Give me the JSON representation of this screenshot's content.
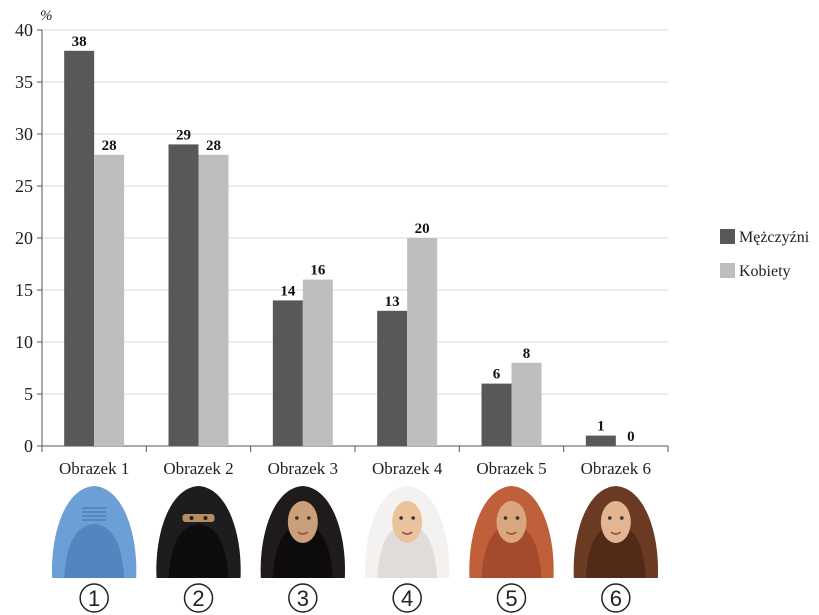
{
  "chart_data": {
    "type": "bar",
    "unit_label": "%",
    "categories": [
      "Obrazek 1",
      "Obrazek 2",
      "Obrazek 3",
      "Obrazek 4",
      "Obrazek 5",
      "Obrazek 6"
    ],
    "series": [
      {
        "name": "Mężczyźni",
        "color": "#58585a",
        "values": [
          38,
          29,
          14,
          13,
          6,
          1
        ]
      },
      {
        "name": "Kobiety",
        "color": "#bdbec0",
        "values": [
          28,
          28,
          16,
          20,
          8,
          0
        ]
      }
    ],
    "y_ticks": [
      "0",
      "5",
      "10",
      "15",
      "20",
      "25",
      "30",
      "35",
      "40"
    ],
    "ylim": [
      0,
      40
    ],
    "grid": true,
    "legend_position": "right",
    "title": "",
    "xlabel": "",
    "ylabel": ""
  },
  "images": {
    "numbers": [
      "1",
      "2",
      "3",
      "4",
      "5",
      "6"
    ],
    "items": [
      {
        "icon": "burqa-portrait-icon",
        "cloth": "#6b9fd6",
        "cloth_dark": "#3f6fae",
        "skin": ""
      },
      {
        "icon": "niqab-portrait-icon",
        "cloth": "#1d1d1f",
        "cloth_dark": "#000000",
        "skin": "#b98b62"
      },
      {
        "icon": "chador-portrait-icon",
        "cloth": "#1e1b1a",
        "cloth_dark": "#000000",
        "skin": "#caa07a"
      },
      {
        "icon": "hijab-portrait-icon",
        "cloth": "#f4f2f0",
        "cloth_dark": "#cfcac6",
        "skin": "#e8c39c"
      },
      {
        "icon": "headscarf-portrait-icon",
        "cloth": "#c0603a",
        "cloth_dark": "#8c3a22",
        "skin": "#d9a67e"
      },
      {
        "icon": "uncovered-hair-portrait-icon",
        "cloth": "#6a3a22",
        "cloth_dark": "#3e1f10",
        "skin": "#e4b592"
      }
    ]
  }
}
